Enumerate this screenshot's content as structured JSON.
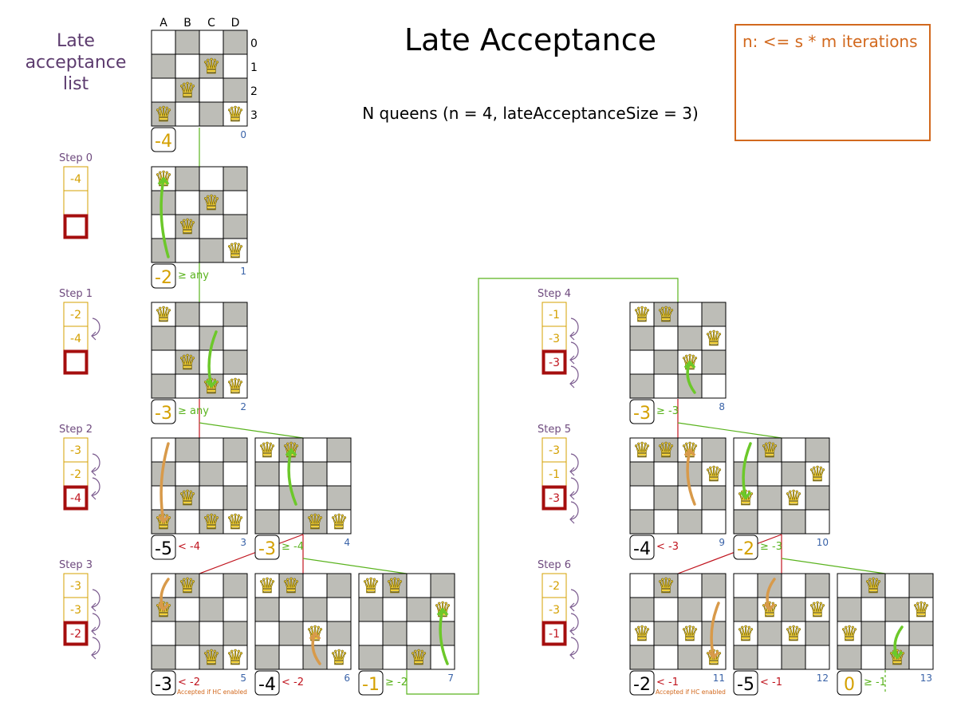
{
  "title": "Late Acceptance",
  "subtitle": "N queens (n = 4, lateAcceptanceSize = 3)",
  "list_heading": "Late acceptance list",
  "note": "n: <= s * m iterations",
  "columns": [
    "A",
    "B",
    "C",
    "D"
  ],
  "rows": [
    "0",
    "1",
    "2",
    "3"
  ],
  "colors": {
    "accepted": "#5ab31e",
    "rejected": "#c0141e",
    "score_accepted": "#d4a000",
    "index": "#3a63a8",
    "list_text": "#d4a000",
    "list_border": "#d4a000",
    "list_highlight": "#a50e0e",
    "step_label": "#6e4a7e",
    "note": "#d2691e",
    "move_accepted": "#6cc82a",
    "move_rejected": "#d89a4a"
  },
  "boards": [
    {
      "index": "0",
      "queens": [
        3,
        2,
        1,
        3
      ],
      "score": "-4",
      "accepted": true,
      "comparison": ""
    },
    {
      "index": "1",
      "queens": [
        0,
        2,
        1,
        3
      ],
      "move": {
        "col": 0,
        "from": 3,
        "to": 0
      },
      "score": "-2",
      "accepted": true,
      "comparison": "≥ any"
    },
    {
      "index": "2",
      "queens": [
        0,
        2,
        3,
        3
      ],
      "move": {
        "col": 2,
        "from": 1,
        "to": 3
      },
      "score": "-3",
      "accepted": true,
      "comparison": "≥ any"
    },
    {
      "index": "3",
      "queens": [
        3,
        2,
        3,
        3
      ],
      "move": {
        "col": 0,
        "from": 0,
        "to": 3
      },
      "score": "-5",
      "accepted": false,
      "comparison": "< -4"
    },
    {
      "index": "4",
      "queens": [
        0,
        0,
        3,
        3
      ],
      "move": {
        "col": 1,
        "from": 2,
        "to": 0
      },
      "score": "-3",
      "accepted": true,
      "comparison": "≥ -4"
    },
    {
      "index": "5",
      "queens": [
        1,
        0,
        3,
        3
      ],
      "move": {
        "col": 0,
        "from": 0,
        "to": 1
      },
      "score": "-3",
      "accepted": false,
      "comparison": "< -2",
      "note": "Accepted if HC enabled"
    },
    {
      "index": "6",
      "queens": [
        0,
        0,
        2,
        3
      ],
      "move": {
        "col": 2,
        "from": 3,
        "to": 2
      },
      "score": "-4",
      "accepted": false,
      "comparison": "< -2"
    },
    {
      "index": "7",
      "queens": [
        0,
        0,
        3,
        1
      ],
      "move": {
        "col": 3,
        "from": 3,
        "to": 1
      },
      "score": "-1",
      "accepted": true,
      "comparison": "≥ -2"
    },
    {
      "index": "8",
      "queens": [
        0,
        0,
        2,
        1
      ],
      "move": {
        "col": 2,
        "from": 3,
        "to": 2
      },
      "score": "-3",
      "accepted": true,
      "comparison": "≥ -3"
    },
    {
      "index": "9",
      "queens": [
        0,
        0,
        0,
        1
      ],
      "move": {
        "col": 2,
        "from": 2,
        "to": 0
      },
      "score": "-4",
      "accepted": false,
      "comparison": "< -3"
    },
    {
      "index": "10",
      "queens": [
        2,
        0,
        2,
        1
      ],
      "move": {
        "col": 0,
        "from": 0,
        "to": 2
      },
      "score": "-2",
      "accepted": true,
      "comparison": "≥ -3"
    },
    {
      "index": "11",
      "queens": [
        2,
        0,
        2,
        3
      ],
      "move": {
        "col": 3,
        "from": 1,
        "to": 3
      },
      "score": "-2",
      "accepted": false,
      "comparison": "< -1",
      "note": "Accepted if HC enabled"
    },
    {
      "index": "12",
      "queens": [
        2,
        1,
        2,
        1
      ],
      "move": {
        "col": 1,
        "from": 0,
        "to": 1
      },
      "score": "-5",
      "accepted": false,
      "comparison": "< -1"
    },
    {
      "index": "13",
      "queens": [
        2,
        0,
        3,
        1
      ],
      "move": {
        "col": 2,
        "from": 2,
        "to": 3
      },
      "score": "0",
      "accepted": true,
      "comparison": "≥ -1"
    }
  ],
  "steps": [
    {
      "label": "Step 0",
      "values": [
        "-4",
        "",
        ""
      ],
      "arrows": 0
    },
    {
      "label": "Step 1",
      "values": [
        "-2",
        "-4",
        ""
      ],
      "arrows": 1
    },
    {
      "label": "Step 2",
      "values": [
        "-3",
        "-2",
        "-4"
      ],
      "arrows": 2
    },
    {
      "label": "Step 3",
      "values": [
        "-3",
        "-3",
        "-2"
      ],
      "arrows": 3
    },
    {
      "label": "Step 4",
      "values": [
        "-1",
        "-3",
        "-3"
      ],
      "arrows": 3
    },
    {
      "label": "Step 5",
      "values": [
        "-3",
        "-1",
        "-3"
      ],
      "arrows": 3
    },
    {
      "label": "Step 6",
      "values": [
        "-2",
        "-3",
        "-1"
      ],
      "arrows": 3
    }
  ]
}
